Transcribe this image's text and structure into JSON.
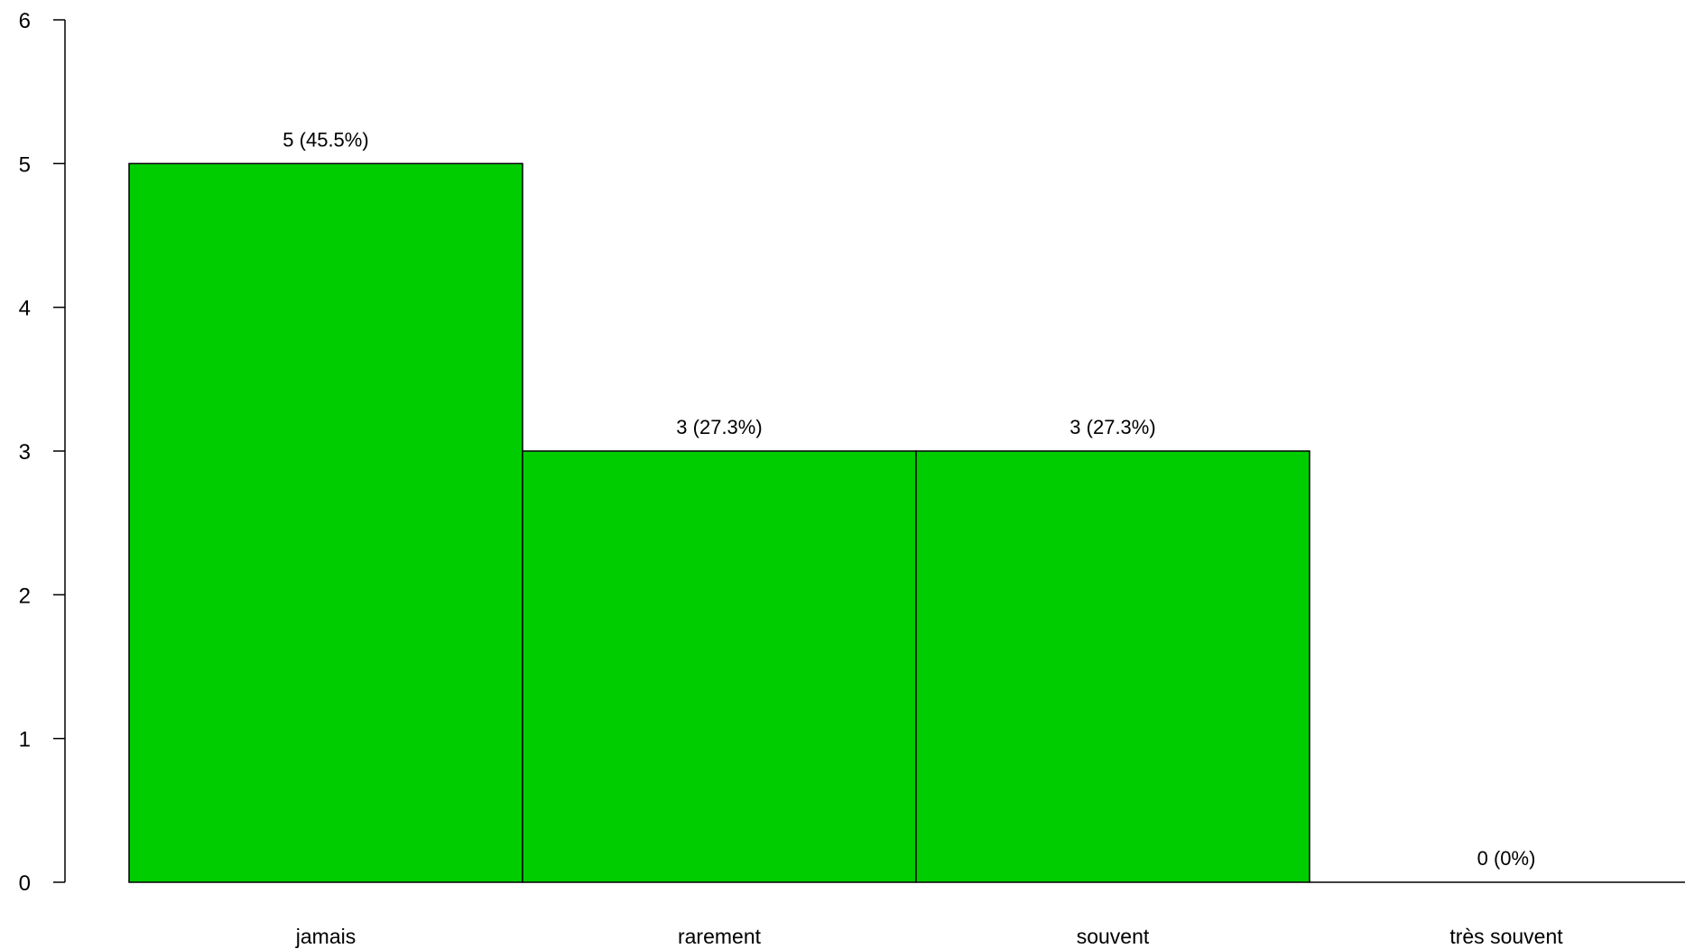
{
  "chart_data": {
    "type": "bar",
    "categories": [
      "jamais",
      "rarement",
      "souvent",
      "très souvent"
    ],
    "values": [
      5,
      3,
      3,
      0
    ],
    "data_labels": [
      "5 (45.5%)",
      "3 (27.3%)",
      "3 (27.3%)",
      "0 (0%)"
    ],
    "ylim": [
      0,
      6
    ],
    "yticks": [
      0,
      1,
      2,
      3,
      4,
      5,
      6
    ],
    "bar_color": "#00CD00",
    "edge_color": "#000000",
    "grid": false,
    "legend": "none"
  }
}
